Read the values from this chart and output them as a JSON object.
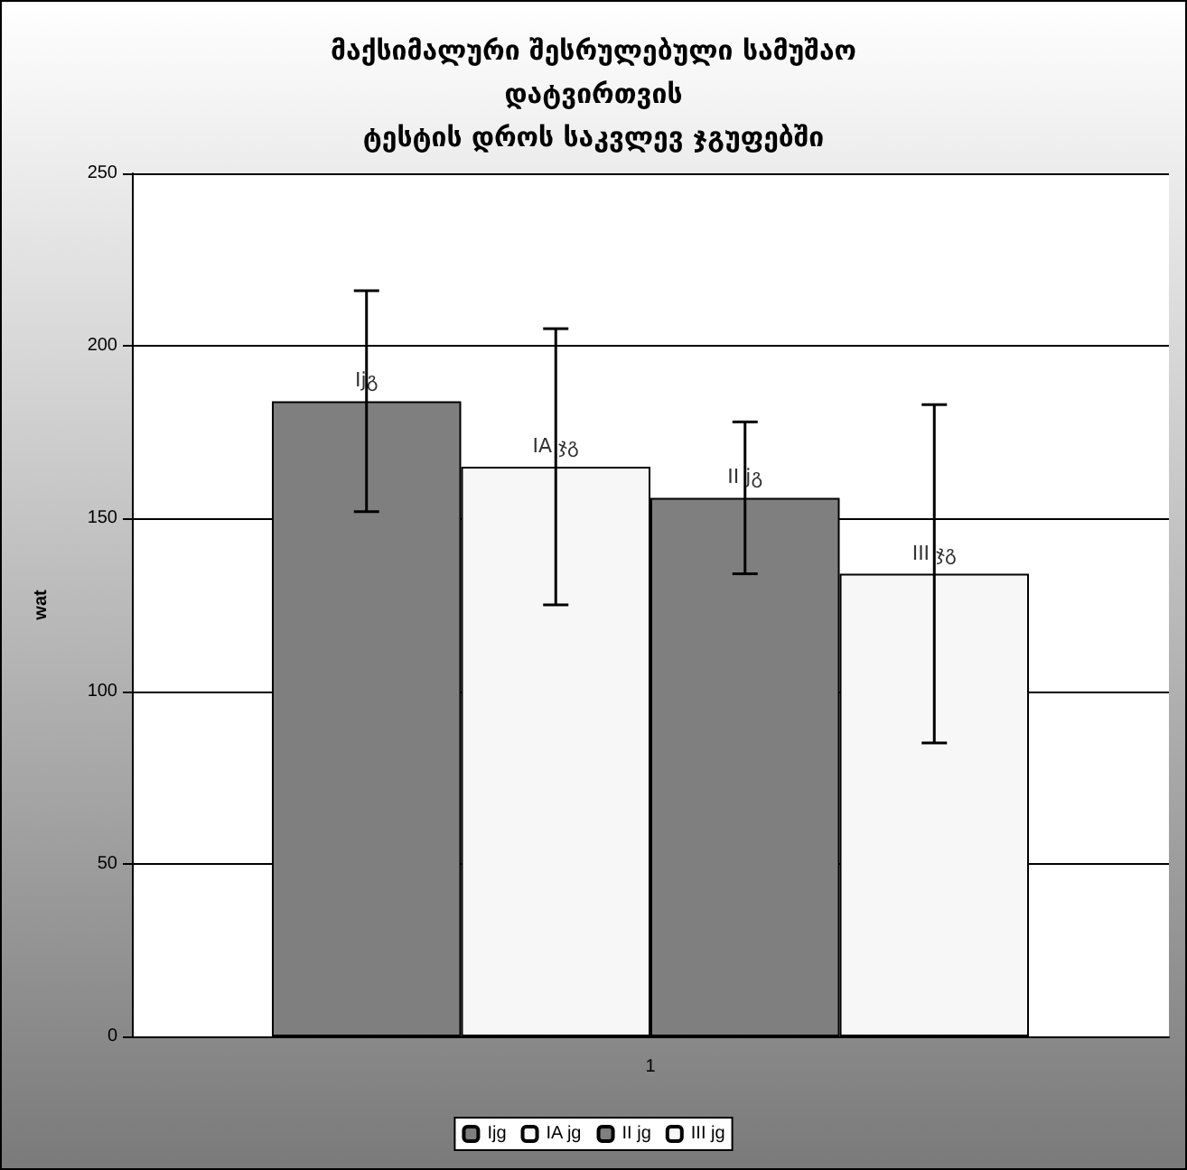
{
  "chart_data": {
    "type": "bar",
    "title": "მაქსიმალური შესრულებული სამუშაო\nდატვირთვის\nტესტის დროს საკვლევ ჯგუფებში",
    "ylabel": "wat",
    "categories": [
      "1"
    ],
    "series": [
      {
        "name": "Ijg",
        "color": "#7f7f7f",
        "values": [
          184
        ],
        "errors": [
          32
        ],
        "value_labels": [
          "Ijგ"
        ]
      },
      {
        "name": "IA jg",
        "color": "#f7f7f7",
        "values": [
          165
        ],
        "errors": [
          40
        ],
        "value_labels": [
          "IA ჯგ"
        ]
      },
      {
        "name": "II jg",
        "color": "#7f7f7f",
        "values": [
          156
        ],
        "errors": [
          22
        ],
        "value_labels": [
          "II jგ"
        ]
      },
      {
        "name": "III jg",
        "color": "#f7f7f7",
        "values": [
          134
        ],
        "errors": [
          49
        ],
        "value_labels": [
          "III ჯგ"
        ]
      }
    ],
    "ylim": [
      0,
      250
    ],
    "yticks": [
      0,
      50,
      100,
      150,
      200,
      250
    ],
    "grid": "y",
    "legend": "bottom"
  }
}
